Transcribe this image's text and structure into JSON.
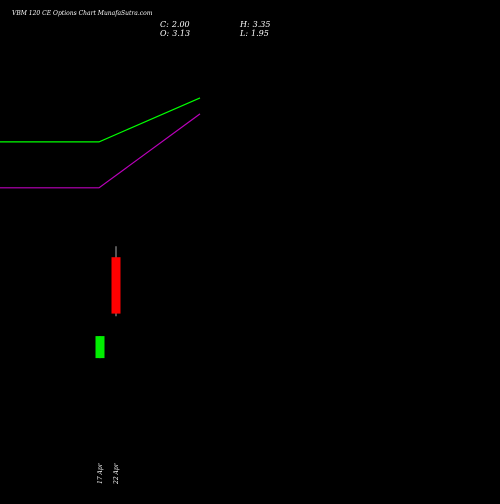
{
  "header": {
    "title": "VBM 120 CE Options  Chart MunafaSutra.com",
    "close_label": "C:",
    "close_value": "2.00",
    "open_label": "O:",
    "open_value": "3.13",
    "high_label": "H:",
    "high_value": "3.35",
    "low_label": "L:",
    "low_value": "1.95"
  },
  "colors": {
    "background": "#000000",
    "text": "#ffffff",
    "bull_candle": "#00ee00",
    "bear_candle": "#ff0000",
    "wick": "#aaaaaa",
    "line_upper": "#00ff00",
    "line_lower": "#bb00bb"
  },
  "chart_data": {
    "type": "candlestick",
    "categories": [
      "17 Apr",
      "22 Apr"
    ],
    "candles": [
      {
        "date": "17 Apr",
        "open": 1.11,
        "high": 1.55,
        "low": 1.11,
        "close": 1.55
      },
      {
        "date": "22 Apr",
        "open": 3.13,
        "high": 3.35,
        "low": 1.95,
        "close": 2.0
      }
    ],
    "lines": [
      {
        "name": "",
        "color": "#00ff00",
        "values": [
          5.44,
          5.44,
          5.44,
          6.32
        ]
      },
      {
        "name": "",
        "color": "#bb00bb",
        "values": [
          4.52,
          4.52,
          4.52,
          6.0
        ]
      }
    ],
    "ylim": [
      -0.93,
      7.48
    ],
    "grid": false,
    "legend": "none"
  }
}
